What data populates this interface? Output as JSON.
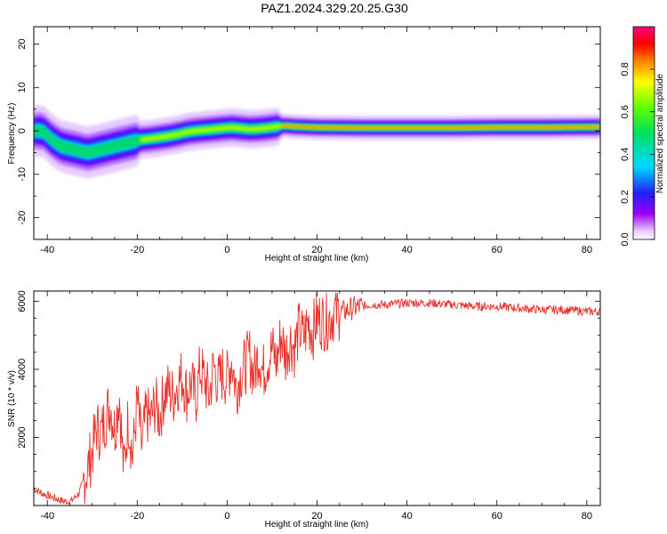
{
  "title": "PAZ1.2024.329.20.25.G30",
  "chart_data": [
    {
      "type": "heatmap",
      "xlabel": "Height of straight line (km)",
      "ylabel": "Frequency (Hz)",
      "xlim": [
        -43,
        83
      ],
      "ylim": [
        -25,
        24
      ],
      "xticks": [
        -40,
        -20,
        0,
        20,
        40,
        60,
        80
      ],
      "yticks": [
        -20,
        -10,
        0,
        10,
        20
      ],
      "colorbar": {
        "label": "Normalized spectral amplitude",
        "range": [
          0,
          1
        ],
        "ticks": [
          0.0,
          0.2,
          0.4,
          0.6,
          0.8
        ],
        "colormap": "rainbow (magenta-low to red/pink-high)"
      },
      "ridge": {
        "x": [
          -41,
          -39,
          -37,
          -35,
          -33,
          -31,
          -29,
          -27,
          -25,
          -23,
          -21,
          -19,
          -17,
          -15,
          -13,
          -11,
          -9,
          -7,
          -5,
          -3,
          -1,
          1,
          3,
          5,
          7,
          9,
          11,
          13,
          15,
          20,
          30,
          40,
          50,
          60,
          70,
          83
        ],
        "y": [
          0,
          -2,
          -3.5,
          -4,
          -4.5,
          -5,
          -4.5,
          -4,
          -3.5,
          -3,
          -2.5,
          -2,
          -1.8,
          -1.5,
          -1.2,
          -0.8,
          -0.3,
          0,
          0.2,
          0.4,
          0.6,
          0.8,
          0.6,
          0.4,
          0.5,
          0.7,
          1.0,
          1.2,
          1.0,
          0.8,
          0.7,
          0.7,
          0.7,
          0.8,
          0.8,
          0.9
        ]
      }
    },
    {
      "type": "line",
      "xlabel": "Height of straight line (km)",
      "ylabel": "SNR (10 * v/v)",
      "xlim": [
        -43,
        83
      ],
      "ylim": [
        0,
        6300
      ],
      "xticks": [
        -40,
        -20,
        0,
        20,
        40,
        60,
        80
      ],
      "yticks": [
        2000,
        4000,
        6000
      ],
      "color": "#e8322b",
      "series": [
        {
          "x": [
            -43,
            -41,
            -39,
            -37,
            -35,
            -33,
            -32,
            -31,
            -30,
            -29,
            -28,
            -27,
            -26,
            -25,
            -24,
            -23,
            -22,
            -21,
            -20,
            -19,
            -18,
            -17,
            -16,
            -15,
            -14,
            -13,
            -12,
            -11,
            -10,
            -9,
            -8,
            -7,
            -6,
            -5,
            -4,
            -3,
            -2,
            -1,
            0,
            1,
            2,
            3,
            4,
            5,
            6,
            7,
            8,
            9,
            10,
            11,
            12,
            13,
            14,
            15,
            16,
            17,
            18,
            19,
            20,
            22,
            24,
            26,
            28,
            30,
            32,
            35,
            40,
            45,
            50,
            55,
            60,
            65,
            70,
            75,
            80,
            83
          ],
          "y": [
            500,
            350,
            250,
            150,
            100,
            350,
            700,
            1100,
            1600,
            2300,
            2100,
            2600,
            3000,
            2200,
            3300,
            1000,
            2600,
            1400,
            3100,
            1700,
            2700,
            2500,
            3000,
            2600,
            3300,
            3400,
            3200,
            3600,
            3800,
            3300,
            3600,
            3100,
            4000,
            3700,
            3200,
            4100,
            3600,
            3900,
            3700,
            4300,
            3400,
            3900,
            4100,
            4400,
            3800,
            4500,
            3900,
            4300,
            4600,
            4200,
            5000,
            4400,
            4900,
            4600,
            5200,
            4900,
            5400,
            5100,
            5500,
            5400,
            5700,
            5700,
            5800,
            5850,
            5900,
            5900,
            5950,
            5950,
            5900,
            5850,
            5850,
            5800,
            5750,
            5750,
            5700,
            5700
          ]
        }
      ]
    }
  ]
}
